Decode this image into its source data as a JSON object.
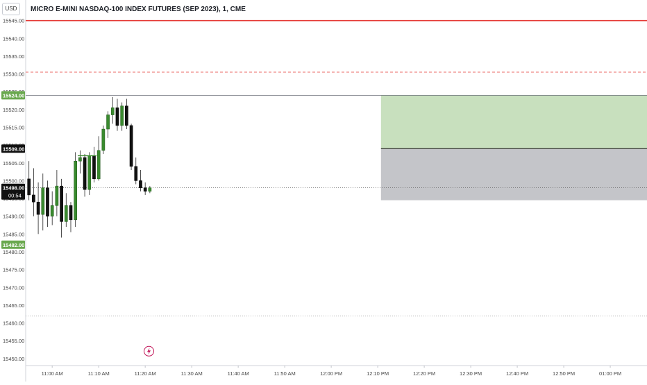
{
  "header": {
    "currency": "USD",
    "symbol_title": "MICRO E-MINI NASDAQ-100 INDEX FUTURES (SEP 2023), 1, CME"
  },
  "colors": {
    "up_candle": "#3a8a2f",
    "down_candle": "#111111",
    "wick": "#222222",
    "stop_line": "#e53935",
    "target_zone": "#c8e0be",
    "stop_zone": "#c4c5c9",
    "green_label": "#6aa84f",
    "black_label": "#111111"
  },
  "chart_data": {
    "type": "candlestick",
    "ylim": [
      15449,
      15550
    ],
    "y_ticks": [
      "15545.00",
      "15540.00",
      "15535.00",
      "15530.00",
      "15525.00",
      "15520.00",
      "15515.00",
      "15510.00",
      "15505.00",
      "15500.00",
      "15495.00",
      "15490.00",
      "15485.00",
      "15480.00",
      "15475.00",
      "15470.00",
      "15465.00",
      "15460.00",
      "15455.00",
      "15450.00"
    ],
    "x_ticks": [
      "11:00 AM",
      "11:10 AM",
      "11:20 AM",
      "11:30 AM",
      "11:40 AM",
      "11:50 AM",
      "12:00 PM",
      "12:10 PM",
      "12:20 PM",
      "12:30 PM",
      "12:40 PM",
      "12:50 PM",
      "01:00 PM"
    ],
    "x_tick_minutes": [
      0,
      10,
      20,
      30,
      40,
      50,
      60,
      70,
      80,
      90,
      100,
      110,
      120
    ],
    "x_range_minutes": [
      -5.7,
      127.9
    ],
    "candles": [
      {
        "t": -5,
        "o": 15500.5,
        "h": 15505.5,
        "l": 15494.5,
        "c": 15496.0
      },
      {
        "t": -4,
        "o": 15496.0,
        "h": 15503.5,
        "l": 15490.0,
        "c": 15494.0
      },
      {
        "t": -3,
        "o": 15494.0,
        "h": 15499.5,
        "l": 15485.0,
        "c": 15490.5
      },
      {
        "t": -2,
        "o": 15490.5,
        "h": 15502.0,
        "l": 15486.0,
        "c": 15498.0
      },
      {
        "t": -1,
        "o": 15498.0,
        "h": 15500.0,
        "l": 15487.0,
        "c": 15490.0
      },
      {
        "t": 0,
        "o": 15490.0,
        "h": 15497.0,
        "l": 15487.5,
        "c": 15493.0
      },
      {
        "t": 1,
        "o": 15493.0,
        "h": 15503.0,
        "l": 15490.0,
        "c": 15498.5
      },
      {
        "t": 2,
        "o": 15498.5,
        "h": 15500.5,
        "l": 15484.0,
        "c": 15488.5
      },
      {
        "t": 3,
        "o": 15488.5,
        "h": 15496.5,
        "l": 15487.0,
        "c": 15493.0
      },
      {
        "t": 4,
        "o": 15493.0,
        "h": 15494.0,
        "l": 15485.5,
        "c": 15489.0
      },
      {
        "t": 5,
        "o": 15489.0,
        "h": 15508.0,
        "l": 15487.0,
        "c": 15505.5
      },
      {
        "t": 6,
        "o": 15505.5,
        "h": 15508.5,
        "l": 15502.0,
        "c": 15506.5
      },
      {
        "t": 7,
        "o": 15506.5,
        "h": 15507.5,
        "l": 15495.5,
        "c": 15497.5
      },
      {
        "t": 8,
        "o": 15497.5,
        "h": 15508.0,
        "l": 15496.0,
        "c": 15507.0
      },
      {
        "t": 9,
        "o": 15507.0,
        "h": 15509.5,
        "l": 15499.5,
        "c": 15500.5
      },
      {
        "t": 10,
        "o": 15500.5,
        "h": 15512.5,
        "l": 15500.0,
        "c": 15508.5
      },
      {
        "t": 11,
        "o": 15508.5,
        "h": 15515.5,
        "l": 15507.5,
        "c": 15514.5
      },
      {
        "t": 12,
        "o": 15514.5,
        "h": 15519.5,
        "l": 15512.0,
        "c": 15518.5
      },
      {
        "t": 13,
        "o": 15518.5,
        "h": 15523.5,
        "l": 15516.0,
        "c": 15520.5
      },
      {
        "t": 14,
        "o": 15520.5,
        "h": 15523.0,
        "l": 15514.0,
        "c": 15515.5
      },
      {
        "t": 15,
        "o": 15515.5,
        "h": 15522.0,
        "l": 15514.0,
        "c": 15521.0
      },
      {
        "t": 16,
        "o": 15521.0,
        "h": 15523.0,
        "l": 15514.5,
        "c": 15515.5
      },
      {
        "t": 17,
        "o": 15515.5,
        "h": 15516.0,
        "l": 15503.0,
        "c": 15504.0
      },
      {
        "t": 18,
        "o": 15504.0,
        "h": 15506.5,
        "l": 15499.0,
        "c": 15500.0
      },
      {
        "t": 19,
        "o": 15500.0,
        "h": 15503.0,
        "l": 15497.0,
        "c": 15498.0
      },
      {
        "t": 20,
        "o": 15498.0,
        "h": 15499.5,
        "l": 15496.0,
        "c": 15497.0
      },
      {
        "t": 21,
        "o": 15497.0,
        "h": 15498.5,
        "l": 15496.5,
        "c": 15498.0
      }
    ],
    "price_label": "15498.00",
    "countdown": "00:54",
    "levels": {
      "stop_line": 15545.0,
      "dashed_red": 15530.5,
      "target_line": 15524.0,
      "entry_line": 15509.0,
      "current_price": 15498.0,
      "stop_zone_bottom": 15494.5,
      "lower_dotted": 15462.0
    },
    "level_labels": {
      "target": "15524.00",
      "entry": "15509.00",
      "lower": "15482.00"
    },
    "label_prices": {
      "target": 15524.0,
      "entry": 15509.0,
      "lower": 15482.0
    },
    "position_zone": {
      "start_minute": 70.7,
      "end_minute": 127.9
    },
    "entry_tick": {
      "start_minute": 5.5,
      "end_minute": 9.5,
      "price": 15507.0
    },
    "event_marker_minute": 20.8,
    "event_marker_price": 15450.5
  }
}
